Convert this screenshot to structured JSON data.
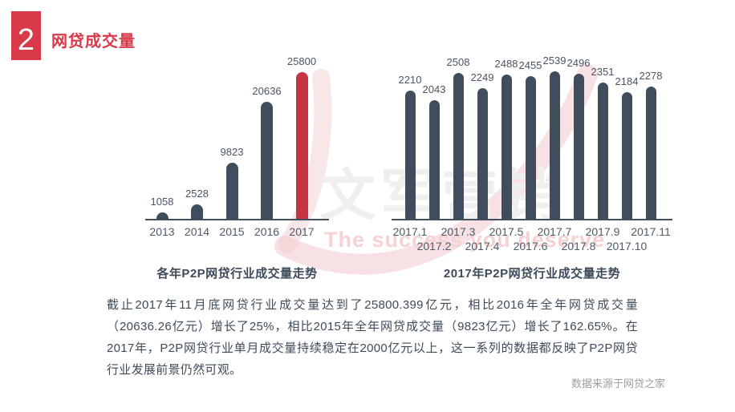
{
  "header": {
    "index_number": "2",
    "title": "网贷成交量",
    "accent_color": "#d8394a"
  },
  "chart_data": [
    {
      "type": "bar",
      "title": "各年P2P网贷行业成交量走势",
      "categories": [
        "2013",
        "2014",
        "2015",
        "2016",
        "2017"
      ],
      "values": [
        1058,
        2528,
        9823,
        20636,
        25800
      ],
      "bar_color": "#3f4d5c",
      "highlight": {
        "index": 4,
        "color": "#c63441"
      },
      "data_labels": "values shown above each bar",
      "xlabel": "",
      "ylabel": "",
      "ylim": [
        0,
        25800
      ],
      "grid": false,
      "legend": "none"
    },
    {
      "type": "bar",
      "title": "2017年P2P网贷行业成交量走势",
      "categories": [
        "2017.1",
        "2017.2",
        "2017.3",
        "2017.4",
        "2017.5",
        "2017.6",
        "2017.7",
        "2017.8",
        "2017.9",
        "2017.10",
        "2017.11"
      ],
      "values": [
        2210,
        2043,
        2508,
        2249,
        2488,
        2455,
        2539,
        2496,
        2351,
        2184,
        2278
      ],
      "bar_color": "#3f4d5c",
      "data_labels": "values shown above each bar",
      "xlabel": "",
      "ylabel": "",
      "ylim": [
        0,
        2539
      ],
      "grid": false,
      "legend": "none",
      "x_labels_staggered": true
    }
  ],
  "watermark": {
    "logo_text": "文军营销",
    "slogan": "The success you deserve",
    "logo_color": "#efefef",
    "slogan_color": "#f6d2d2",
    "swoosh_color": "#f2c9cd"
  },
  "body_text": "截止2017年11月底网贷行业成交量达到了25800.399亿元，相比2016年全年网贷成交量（20636.26亿元）增长了25%，相比2015年全年网贷成交量（9823亿元）增长了162.65%。在2017年，P2P网贷行业单月成交量持续稳定在2000亿元以上，这一系列的数据都反映了P2P网贷行业发展前景仍然可观。",
  "source_note": "数据来源于网贷之家"
}
